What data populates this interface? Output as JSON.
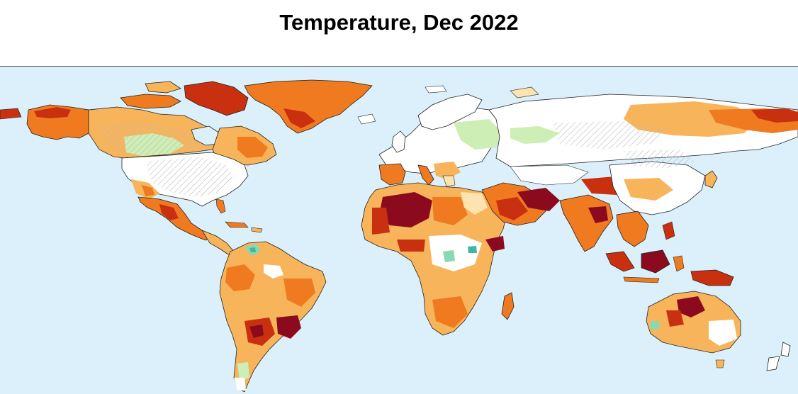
{
  "title": "Temperature, Dec 2022",
  "colors": {
    "ocean": "#dbf0fb",
    "coastline": "#222222",
    "map_border_top": "#555555",
    "extreme_hot": "#8c0a1e",
    "very_hot": "#c9300f",
    "hot": "#ef7a20",
    "warm": "#f7b45a",
    "mild_warm": "#fde3b0",
    "near_normal": "#ffffff",
    "cool": "#cdeeb4",
    "cold": "#86d9b2",
    "very_cold": "#3fb7a6",
    "hatch_no_data": "#b9b9b9"
  }
}
